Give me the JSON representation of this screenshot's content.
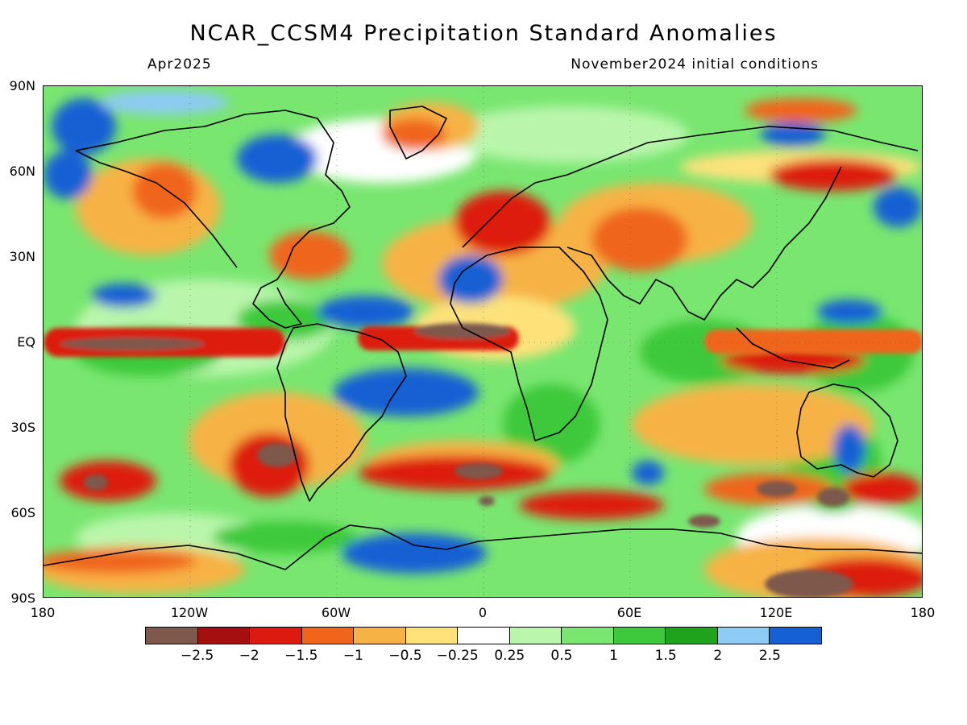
{
  "header": {
    "title": "NCAR_CCSM4 Precipitation Standard Anomalies",
    "valid_month": "Apr2025",
    "init_conditions": "November2024 initial conditions"
  },
  "map": {
    "lat_labels": [
      "90N",
      "60N",
      "30N",
      "EQ",
      "30S",
      "60S",
      "90S"
    ],
    "lon_labels": [
      "180",
      "120W",
      "60W",
      "0",
      "60E",
      "120E",
      "180"
    ]
  },
  "legend": {
    "colors": [
      "#7d584b",
      "#a50f0f",
      "#dd1a10",
      "#f0651a",
      "#f7b245",
      "#fde27a",
      "#ffffff",
      "#b9f6ac",
      "#79e670",
      "#3dc93b",
      "#1fa31d",
      "#8dcbf5",
      "#1560d4"
    ],
    "labels": [
      "-2.5",
      "-2",
      "-1.5",
      "-1",
      "-0.5",
      "-0.25",
      "0.25",
      "0.5",
      "1",
      "1.5",
      "2",
      "2.5"
    ]
  }
}
